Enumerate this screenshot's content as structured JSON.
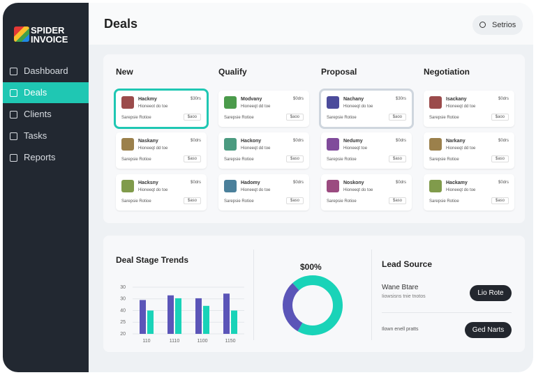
{
  "sidebar": {
    "logo": [
      "SPIDER",
      "INVOICE"
    ],
    "nav": [
      "Dashboard",
      "Deals",
      "Clients",
      "Tasks",
      "Reports"
    ],
    "active": 1
  },
  "header": {
    "title": "Deals",
    "search": "Setrios"
  },
  "board": {
    "columns": [
      {
        "title": "New",
        "cards": [
          {
            "name": "Hackmy",
            "amount": "$30rs",
            "subtitle": "Hioneeot do toe",
            "footer": "Sarepsie Rotioe",
            "tag": "$aoo"
          },
          {
            "name": "Naskany",
            "amount": "$0drs",
            "subtitle": "Hioneeqt dd toe",
            "footer": "Sarepsie Rotioe",
            "tag": "$aso"
          },
          {
            "name": "Hacksny",
            "amount": "$0drs",
            "subtitle": "Hioneeqt do toe",
            "footer": "Sarepsie Rotioe",
            "tag": "$aso"
          }
        ]
      },
      {
        "title": "Qualify",
        "cards": [
          {
            "name": "Modvany",
            "amount": "$0drs",
            "subtitle": "Hioneeqt dd toe",
            "footer": "Sarepsie Rotioe",
            "tag": "$aoo"
          },
          {
            "name": "Hackony",
            "amount": "$0drs",
            "subtitle": "Hioneeqt dd toe",
            "footer": "Sarepsie Rotioe",
            "tag": "$aso"
          },
          {
            "name": "Hadomy",
            "amount": "$0drs",
            "subtitle": "Hioneeqt do toe",
            "footer": "Sarepsie Rotioe",
            "tag": "$aso"
          }
        ]
      },
      {
        "title": "Proposal",
        "cards": [
          {
            "name": "Nachany",
            "amount": "$30rs",
            "subtitle": "Hioneeqt do toe",
            "footer": "Sarepsie Rotioe",
            "tag": "$aoo"
          },
          {
            "name": "Nedumy",
            "amount": "$0drs",
            "subtitle": "Hioneeqt toe",
            "footer": "Sarepsie Rotioe",
            "tag": "$aso"
          },
          {
            "name": "Noskony",
            "amount": "$0drs",
            "subtitle": "Hioneeqt do toe",
            "footer": "Sarepsie Rotioe",
            "tag": "$aso"
          }
        ]
      },
      {
        "title": "Negotiation",
        "cards": [
          {
            "name": "Isackany",
            "amount": "$0drs",
            "subtitle": "Hioneeqt dd toe",
            "footer": "Sarepsie Rotioe",
            "tag": "$aoo"
          },
          {
            "name": "Narkany",
            "amount": "$0drs",
            "subtitle": "Hioneeqt dd toe",
            "footer": "Sarepsie Rotioe",
            "tag": "$aso"
          },
          {
            "name": "Hackamy",
            "amount": "$0drs",
            "subtitle": "Hioneeqt do toe",
            "footer": "Sarepsie Rotioe",
            "tag": "$aso"
          }
        ]
      }
    ],
    "selected": [
      [
        0,
        0
      ],
      [
        2,
        0
      ]
    ]
  },
  "trend_chart": {
    "type": "bar",
    "title": "Deal Stage Trends",
    "categories": [
      "110",
      "1110",
      "1100",
      "1150"
    ],
    "series": [
      {
        "color": "#5b55b8",
        "values": [
          2.9,
          3.3,
          3.05,
          3.45
        ]
      },
      {
        "color": "#19d3b8",
        "values": [
          2.0,
          3.05,
          2.4,
          2.0
        ]
      }
    ],
    "ylim": [
      0,
      4
    ],
    "yticks": [
      {
        "value": 0,
        "label": "20"
      },
      {
        "value": 1,
        "label": "25"
      },
      {
        "value": 2,
        "label": "40"
      },
      {
        "value": 3,
        "label": "30"
      },
      {
        "value": 4,
        "label": "30"
      }
    ],
    "grid": true
  },
  "donut_chart": {
    "type": "pie",
    "title": "$00%",
    "values": [
      30,
      70
    ],
    "colors": [
      "#5b55b8",
      "#19d3b8"
    ]
  },
  "lead_source": {
    "title": "Lead Source",
    "item_title": "Wane Btare",
    "item_text": "Iiowsisns tnie tnotos",
    "button1": "Lio Rote",
    "item2_text": "Ilown enell pratts",
    "button2": "Ged Narts"
  }
}
